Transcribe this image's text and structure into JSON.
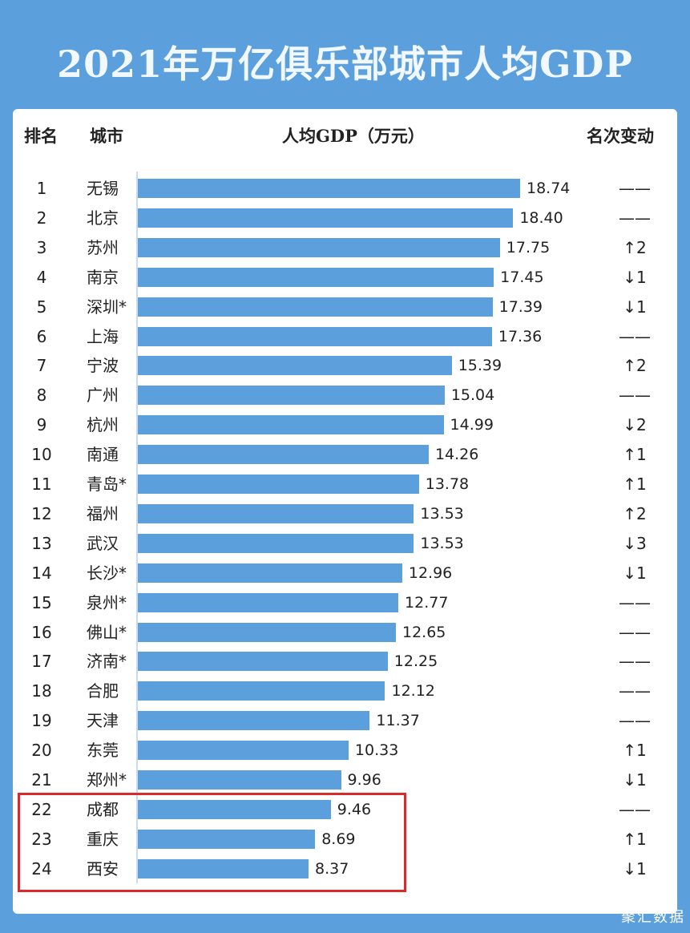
{
  "title": "2021年万亿俱乐部城市人均GDP",
  "headers": {
    "rank": "排名",
    "city": "城市",
    "value": "人均GDP（万元）",
    "change": "名次变动"
  },
  "colors": {
    "bar": "#5ba0dc",
    "highlight_border": "#d92b2b"
  },
  "watermark": "聚汇数据",
  "chart_data": {
    "type": "bar",
    "orientation": "horizontal",
    "title": "2021年万亿俱乐部城市人均GDP",
    "xlabel": "人均GDP（万元）",
    "categories": [
      "无锡",
      "北京",
      "苏州",
      "南京",
      "深圳*",
      "上海",
      "宁波",
      "广州",
      "杭州",
      "南通",
      "青岛*",
      "福州",
      "武汉",
      "长沙*",
      "泉州*",
      "佛山*",
      "济南*",
      "合肥",
      "天津",
      "东莞",
      "郑州*",
      "成都",
      "重庆",
      "西安"
    ],
    "ranks": [
      "1",
      "2",
      "3",
      "4",
      "5",
      "6",
      "7",
      "8",
      "9",
      "10",
      "11",
      "12",
      "13",
      "14",
      "15",
      "16",
      "17",
      "18",
      "19",
      "20",
      "21",
      "22",
      "23",
      "24"
    ],
    "values": [
      18.74,
      18.4,
      17.75,
      17.45,
      17.39,
      17.36,
      15.39,
      15.04,
      14.99,
      14.26,
      13.78,
      13.53,
      13.53,
      12.96,
      12.77,
      12.65,
      12.25,
      12.12,
      11.37,
      10.33,
      9.96,
      9.46,
      8.69,
      8.37
    ],
    "value_labels": [
      "18.74",
      "18.40",
      "17.75",
      "17.45",
      "17.39",
      "17.36",
      "15.39",
      "15.04",
      "14.99",
      "14.26",
      "13.78",
      "13.53",
      "13.53",
      "12.96",
      "12.77",
      "12.65",
      "12.25",
      "12.12",
      "11.37",
      "10.33",
      "9.96",
      "9.46",
      "8.69",
      "8.37"
    ],
    "rank_change": [
      "——",
      "——",
      "↑2",
      "↓1",
      "↓1",
      "——",
      "↑2",
      "——",
      "↓2",
      "↑1",
      "↑1",
      "↑2",
      "↓3",
      "↓1",
      "——",
      "——",
      "——",
      "——",
      "——",
      "↑1",
      "↓1",
      "——",
      "↑1",
      "↓1"
    ],
    "highlighted": [
      "成都",
      "重庆",
      "西安"
    ]
  }
}
